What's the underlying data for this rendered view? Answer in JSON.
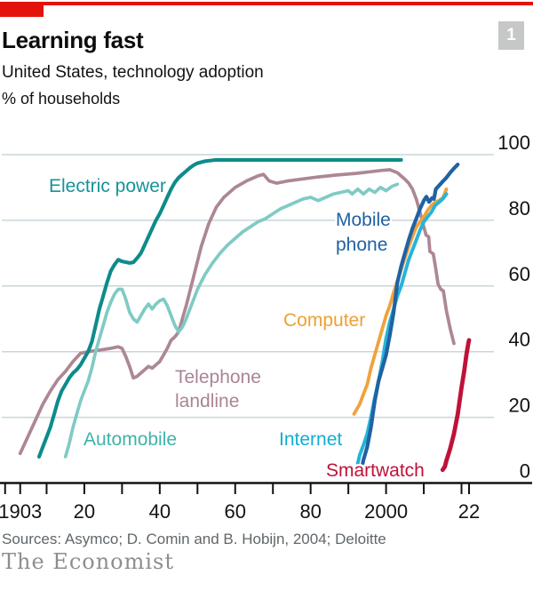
{
  "header": {
    "title": "Learning fast",
    "subtitle": "United States, technology adoption",
    "unit": "% of households",
    "badge": "1",
    "accent_red": "#e3120b",
    "badge_bg": "#c6c7c7"
  },
  "footer": {
    "sources": "Sources: Asymco; D. Comin and B. Hobijn, 2004; Deloitte",
    "brand": "The Economist"
  },
  "chart_data": {
    "type": "line",
    "title": "Learning fast",
    "subtitle": "United States, technology adoption",
    "xlabel": "",
    "ylabel": "% of households",
    "xlim": [
      1899,
      2029
    ],
    "ylim": [
      0,
      100
    ],
    "grid": "on",
    "grid_color": "#c9d6db",
    "axis_color": "#121212",
    "legend_position": "labels-on-chart",
    "y_ticks": [
      100,
      80,
      60,
      40,
      20,
      0
    ],
    "x_ticks": [
      {
        "year": 1899,
        "label": null
      },
      {
        "year": 1903,
        "label": "1903"
      },
      {
        "year": 1910,
        "label": null
      },
      {
        "year": 1920,
        "label": "20"
      },
      {
        "year": 1930,
        "label": null
      },
      {
        "year": 1940,
        "label": "40"
      },
      {
        "year": 1950,
        "label": null
      },
      {
        "year": 1960,
        "label": "60"
      },
      {
        "year": 1970,
        "label": null
      },
      {
        "year": 1980,
        "label": "80"
      },
      {
        "year": 1990,
        "label": null
      },
      {
        "year": 2000,
        "label": "2000"
      },
      {
        "year": 2010,
        "label": null
      },
      {
        "year": 2020,
        "label": null
      },
      {
        "year": 2022,
        "label": "22"
      }
    ],
    "series": [
      {
        "key": "telephone_landline",
        "name": "Telephone landline",
        "label_lines": [
          "Telephone",
          "landline"
        ],
        "color": "#ac8794",
        "label_color": "#a98495",
        "points": [
          [
            1903,
            9
          ],
          [
            1905,
            14
          ],
          [
            1907,
            19
          ],
          [
            1909,
            24
          ],
          [
            1911,
            28
          ],
          [
            1913,
            31.5
          ],
          [
            1915,
            34
          ],
          [
            1917,
            37
          ],
          [
            1919,
            39.5
          ],
          [
            1921,
            40
          ],
          [
            1924,
            40.5
          ],
          [
            1927,
            41
          ],
          [
            1929,
            41.5
          ],
          [
            1930,
            41
          ],
          [
            1931,
            38.5
          ],
          [
            1932,
            35.5
          ],
          [
            1933,
            32
          ],
          [
            1934,
            32.5
          ],
          [
            1935,
            33.5
          ],
          [
            1936,
            34.5
          ],
          [
            1937,
            35.5
          ],
          [
            1938,
            35
          ],
          [
            1939,
            36
          ],
          [
            1940,
            37
          ],
          [
            1941,
            39
          ],
          [
            1942,
            41
          ],
          [
            1943,
            43.5
          ],
          [
            1944,
            44.5
          ],
          [
            1945,
            46
          ],
          [
            1946,
            50
          ],
          [
            1947,
            54
          ],
          [
            1949,
            63
          ],
          [
            1951,
            72
          ],
          [
            1953,
            79
          ],
          [
            1955,
            84
          ],
          [
            1957,
            87
          ],
          [
            1960,
            90
          ],
          [
            1963,
            92
          ],
          [
            1966,
            93.5
          ],
          [
            1967.5,
            94
          ],
          [
            1969,
            92
          ],
          [
            1971,
            91.3
          ],
          [
            1974,
            92
          ],
          [
            1978,
            92.6
          ],
          [
            1982,
            93.2
          ],
          [
            1987,
            93.8
          ],
          [
            1992,
            94.3
          ],
          [
            1996,
            94.8
          ],
          [
            1999,
            95.2
          ],
          [
            2001,
            95.4
          ],
          [
            2003,
            94.5
          ],
          [
            2005,
            92.5
          ],
          [
            2006,
            91.3
          ],
          [
            2007,
            89.5
          ],
          [
            2008,
            86.5
          ],
          [
            2009,
            82.5
          ],
          [
            2010,
            78
          ],
          [
            2010.6,
            75.5
          ],
          [
            2011.3,
            75
          ],
          [
            2011.6,
            70.5
          ],
          [
            2012.5,
            69.8
          ],
          [
            2013,
            66.5
          ],
          [
            2013.8,
            60.5
          ],
          [
            2014.5,
            59
          ],
          [
            2015.2,
            58.5
          ],
          [
            2016,
            52.5
          ],
          [
            2017,
            47
          ],
          [
            2018,
            42.5
          ]
        ]
      },
      {
        "key": "automobile",
        "name": "Automobile",
        "label_lines": [
          "Automobile"
        ],
        "color": "#7fcbc4",
        "label_color": "#3fb2a9",
        "points": [
          [
            1915,
            8
          ],
          [
            1916,
            12
          ],
          [
            1917,
            17
          ],
          [
            1918,
            21
          ],
          [
            1919,
            25
          ],
          [
            1920,
            28
          ],
          [
            1921,
            31
          ],
          [
            1922,
            35
          ],
          [
            1923,
            40
          ],
          [
            1924,
            44
          ],
          [
            1925,
            48
          ],
          [
            1926,
            52
          ],
          [
            1927,
            55
          ],
          [
            1928,
            57.5
          ],
          [
            1929,
            59
          ],
          [
            1930,
            59
          ],
          [
            1931,
            56
          ],
          [
            1932,
            52
          ],
          [
            1933,
            50
          ],
          [
            1934,
            49
          ],
          [
            1935,
            51
          ],
          [
            1936,
            53
          ],
          [
            1937,
            54.5
          ],
          [
            1938,
            53
          ],
          [
            1939,
            54.5
          ],
          [
            1940,
            55.5
          ],
          [
            1941,
            56
          ],
          [
            1942,
            54
          ],
          [
            1943,
            51
          ],
          [
            1944,
            48
          ],
          [
            1945,
            46
          ],
          [
            1946,
            47.5
          ],
          [
            1947,
            50
          ],
          [
            1948,
            53
          ],
          [
            1949,
            56
          ],
          [
            1950,
            59
          ],
          [
            1952,
            63.5
          ],
          [
            1954,
            67
          ],
          [
            1956,
            70
          ],
          [
            1958,
            72.5
          ],
          [
            1960,
            74.5
          ],
          [
            1962,
            76.5
          ],
          [
            1964,
            78
          ],
          [
            1966,
            79.5
          ],
          [
            1968,
            80.5
          ],
          [
            1970,
            82
          ],
          [
            1972,
            83.5
          ],
          [
            1974,
            84.5
          ],
          [
            1976,
            85.5
          ],
          [
            1978,
            86.5
          ],
          [
            1980,
            87
          ],
          [
            1982,
            86
          ],
          [
            1984,
            87
          ],
          [
            1986,
            88
          ],
          [
            1988,
            88.5
          ],
          [
            1990,
            89
          ],
          [
            1991,
            88
          ],
          [
            1992.5,
            89.5
          ],
          [
            1994,
            88
          ],
          [
            1995.5,
            89.5
          ],
          [
            1997,
            88.5
          ],
          [
            1998.5,
            90
          ],
          [
            2000,
            89
          ],
          [
            2001.5,
            90.3
          ],
          [
            2003,
            91
          ]
        ]
      },
      {
        "key": "electric_power",
        "name": "Electric power",
        "label_lines": [
          "Electric power"
        ],
        "color": "#0e8b8b",
        "label_color": "#17929a",
        "points": [
          [
            1908,
            8
          ],
          [
            1909,
            11
          ],
          [
            1910,
            14
          ],
          [
            1911,
            17
          ],
          [
            1912,
            21
          ],
          [
            1913,
            25
          ],
          [
            1914,
            28
          ],
          [
            1915,
            30
          ],
          [
            1916,
            32
          ],
          [
            1917,
            33.5
          ],
          [
            1918,
            34.5
          ],
          [
            1919,
            36
          ],
          [
            1920,
            38
          ],
          [
            1921,
            40
          ],
          [
            1922,
            43
          ],
          [
            1923,
            48
          ],
          [
            1924,
            53
          ],
          [
            1925,
            57
          ],
          [
            1926,
            61
          ],
          [
            1927,
            64.5
          ],
          [
            1928,
            66.5
          ],
          [
            1929,
            68
          ],
          [
            1930,
            67.5
          ],
          [
            1932,
            67
          ],
          [
            1933,
            67.2
          ],
          [
            1934,
            68.5
          ],
          [
            1935,
            70
          ],
          [
            1936,
            72.5
          ],
          [
            1937,
            75
          ],
          [
            1938,
            77.5
          ],
          [
            1939,
            80
          ],
          [
            1940,
            82
          ],
          [
            1941,
            84.5
          ],
          [
            1942,
            87
          ],
          [
            1943,
            89.5
          ],
          [
            1944,
            91.5
          ],
          [
            1945,
            93
          ],
          [
            1946,
            94
          ],
          [
            1947,
            95
          ],
          [
            1948,
            96
          ],
          [
            1949,
            96.8
          ],
          [
            1950,
            97.4
          ],
          [
            1952,
            98
          ],
          [
            1955,
            98.4
          ],
          [
            1965,
            98.4
          ],
          [
            1980,
            98.4
          ],
          [
            1995,
            98.4
          ],
          [
            2004,
            98.4
          ]
        ]
      },
      {
        "key": "computer",
        "name": "Computer",
        "label_lines": [
          "Computer"
        ],
        "color": "#f0a23c",
        "label_color": "#efa032",
        "points": [
          [
            1991.5,
            21
          ],
          [
            1992,
            22
          ],
          [
            1993,
            24
          ],
          [
            1994,
            27
          ],
          [
            1995,
            30
          ],
          [
            1996,
            35
          ],
          [
            1997,
            39
          ],
          [
            1998,
            43
          ],
          [
            1999,
            47
          ],
          [
            2000,
            51
          ],
          [
            2001,
            54
          ],
          [
            2002,
            58
          ],
          [
            2003,
            61.5
          ],
          [
            2004,
            65
          ],
          [
            2005,
            68.5
          ],
          [
            2006,
            72
          ],
          [
            2007,
            75
          ],
          [
            2008,
            78
          ],
          [
            2009,
            79.5
          ],
          [
            2010,
            81
          ],
          [
            2011,
            83
          ],
          [
            2012,
            84.5
          ],
          [
            2013,
            85.5
          ],
          [
            2014,
            86
          ],
          [
            2015,
            86.8
          ],
          [
            2015.5,
            88
          ],
          [
            2016,
            89.5
          ]
        ]
      },
      {
        "key": "internet",
        "name": "Internet",
        "label_lines": [
          "Internet"
        ],
        "color": "#27b4d8",
        "label_color": "#12add5",
        "points": [
          [
            1992.5,
            6
          ],
          [
            1993,
            8.5
          ],
          [
            1994,
            11.5
          ],
          [
            1995,
            15
          ],
          [
            1996,
            20
          ],
          [
            1997,
            26
          ],
          [
            1998,
            31
          ],
          [
            1999,
            37
          ],
          [
            2000,
            44
          ],
          [
            2001,
            49
          ],
          [
            2002,
            53
          ],
          [
            2003,
            57
          ],
          [
            2004,
            60
          ],
          [
            2005,
            64
          ],
          [
            2006,
            68
          ],
          [
            2007,
            71
          ],
          [
            2008,
            74
          ],
          [
            2009,
            77
          ],
          [
            2010,
            79.5
          ],
          [
            2011,
            81
          ],
          [
            2012,
            82.5
          ],
          [
            2013,
            84.5
          ],
          [
            2014,
            85.5
          ],
          [
            2015,
            86.5
          ],
          [
            2016,
            88
          ]
        ]
      },
      {
        "key": "mobile_phone",
        "name": "Mobile phone",
        "label_lines": [
          "Mobile",
          "phone"
        ],
        "color": "#2062a3",
        "label_color": "#2062a3",
        "points": [
          [
            1993.5,
            4
          ],
          [
            1994,
            7
          ],
          [
            1995,
            11
          ],
          [
            1996,
            17
          ],
          [
            1997,
            25
          ],
          [
            1998,
            31
          ],
          [
            1999,
            35
          ],
          [
            2000,
            39
          ],
          [
            2001,
            45
          ],
          [
            2002,
            52
          ],
          [
            2003,
            61
          ],
          [
            2004,
            66
          ],
          [
            2005,
            70
          ],
          [
            2006,
            74
          ],
          [
            2007,
            77.5
          ],
          [
            2008,
            80.5
          ],
          [
            2009,
            83.5
          ],
          [
            2010,
            86
          ],
          [
            2010.7,
            87.2
          ],
          [
            2011.4,
            85.6
          ],
          [
            2012.2,
            86.8
          ],
          [
            2012.7,
            86.5
          ],
          [
            2013.2,
            89.5
          ],
          [
            2014,
            90.5
          ],
          [
            2015,
            91.8
          ],
          [
            2016,
            93
          ],
          [
            2017,
            94.5
          ],
          [
            2018,
            95.8
          ],
          [
            2019,
            97
          ]
        ]
      },
      {
        "key": "smartwatch",
        "name": "Smartwatch",
        "label_lines": [
          "Smartwatch"
        ],
        "color": "#bf1238",
        "label_color": "#bf1238",
        "points": [
          [
            2015,
            4
          ],
          [
            2015.6,
            5
          ],
          [
            2016,
            6.8
          ],
          [
            2017,
            10.5
          ],
          [
            2018,
            15
          ],
          [
            2019,
            21
          ],
          [
            2020,
            29
          ],
          [
            2020.7,
            34
          ],
          [
            2021.3,
            39
          ],
          [
            2021.8,
            42.5
          ],
          [
            2022,
            43.5
          ]
        ]
      }
    ]
  }
}
